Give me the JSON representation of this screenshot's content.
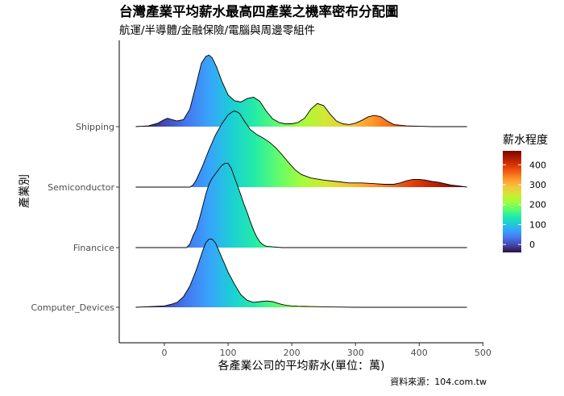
{
  "chart_data": {
    "type": "area",
    "subtype": "ridgeline-density",
    "title": "台灣產業平均薪水最高四產業之機率密布分配圖",
    "subtitle": "航運/半導體/金融保險/電腦與周邊零組件",
    "xlabel": "各產業公司的平均薪水(單位：萬)",
    "ylabel": "產業別",
    "caption": "資料來源：104.com.tw",
    "x_ticks": [
      0,
      100,
      200,
      300,
      400,
      500
    ],
    "xlim": [
      -70,
      500
    ],
    "grid": false,
    "legend": {
      "title": "薪水程度",
      "position": "right",
      "ticks": [
        0,
        100,
        200,
        300,
        400
      ],
      "range": [
        -40,
        470
      ]
    },
    "series": [
      {
        "name": "Shipping",
        "x": [
          -45,
          -25,
          -10,
          0,
          5,
          12,
          20,
          30,
          40,
          50,
          58,
          65,
          70,
          75,
          82,
          90,
          100,
          110,
          120,
          130,
          140,
          150,
          160,
          170,
          180,
          190,
          200,
          210,
          220,
          230,
          240,
          250,
          260,
          270,
          280,
          290,
          300,
          310,
          320,
          330,
          340,
          350,
          360,
          380,
          420,
          475
        ],
        "density": [
          0,
          0.01,
          0.05,
          0.1,
          0.12,
          0.1,
          0.08,
          0.1,
          0.25,
          0.6,
          0.9,
          1.0,
          1.02,
          0.98,
          0.85,
          0.65,
          0.45,
          0.37,
          0.35,
          0.4,
          0.42,
          0.36,
          0.22,
          0.11,
          0.06,
          0.04,
          0.04,
          0.06,
          0.12,
          0.25,
          0.33,
          0.3,
          0.18,
          0.08,
          0.04,
          0.03,
          0.05,
          0.09,
          0.14,
          0.16,
          0.14,
          0.08,
          0.03,
          0.01,
          0,
          0
        ]
      },
      {
        "name": "Semiconductor",
        "x": [
          -45,
          40,
          45,
          50,
          60,
          70,
          80,
          90,
          100,
          108,
          112,
          118,
          125,
          135,
          145,
          155,
          165,
          175,
          185,
          195,
          205,
          215,
          230,
          250,
          270,
          290,
          310,
          330,
          345,
          360,
          370,
          380,
          390,
          400,
          410,
          420,
          430,
          440,
          450,
          460,
          475
        ],
        "density": [
          0,
          0,
          0.03,
          0.1,
          0.3,
          0.53,
          0.74,
          0.9,
          1.03,
          1.08,
          1.08,
          1.05,
          0.95,
          0.82,
          0.75,
          0.7,
          0.64,
          0.56,
          0.46,
          0.35,
          0.25,
          0.18,
          0.13,
          0.1,
          0.08,
          0.06,
          0.06,
          0.05,
          0.04,
          0.04,
          0.06,
          0.09,
          0.11,
          0.11,
          0.1,
          0.08,
          0.07,
          0.05,
          0.03,
          0.02,
          0
        ]
      },
      {
        "name": "Financice",
        "x": [
          -45,
          35,
          40,
          45,
          50,
          55,
          60,
          65,
          70,
          75,
          80,
          85,
          90,
          95,
          100,
          105,
          110,
          115,
          120,
          125,
          130,
          135,
          140,
          145,
          150,
          155,
          160,
          170,
          185,
          210,
          475
        ],
        "density": [
          0,
          0,
          0.05,
          0.17,
          0.26,
          0.41,
          0.58,
          0.76,
          0.9,
          0.99,
          1.05,
          1.11,
          1.17,
          1.2,
          1.2,
          1.13,
          1.0,
          0.88,
          0.75,
          0.62,
          0.5,
          0.37,
          0.25,
          0.15,
          0.08,
          0.04,
          0.02,
          0.01,
          0,
          0,
          0
        ]
      },
      {
        "name": "Computer_Devices",
        "x": [
          -45,
          -20,
          0,
          10,
          20,
          30,
          40,
          50,
          60,
          65,
          70,
          75,
          80,
          85,
          90,
          95,
          100,
          110,
          120,
          130,
          140,
          150,
          160,
          170,
          180,
          190,
          200,
          210,
          230,
          260,
          300,
          475
        ],
        "density": [
          0,
          0.01,
          0.02,
          0.04,
          0.07,
          0.15,
          0.3,
          0.53,
          0.8,
          0.92,
          0.97,
          0.97,
          0.92,
          0.82,
          0.71,
          0.61,
          0.5,
          0.33,
          0.18,
          0.1,
          0.07,
          0.08,
          0.09,
          0.08,
          0.05,
          0.03,
          0.02,
          0.015,
          0.01,
          0.005,
          0,
          0
        ]
      }
    ]
  }
}
